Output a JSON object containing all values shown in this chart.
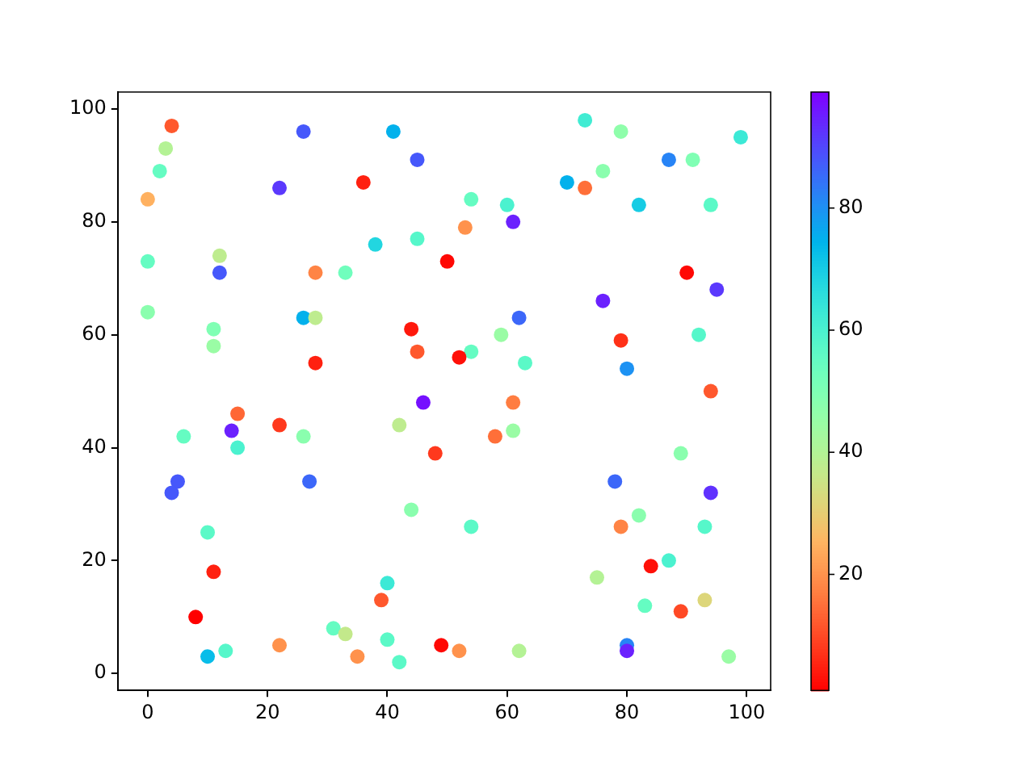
{
  "chart_data": {
    "type": "scatter",
    "marker": "circle",
    "grid": false,
    "legend": false,
    "xlim": [
      -5,
      104
    ],
    "ylim": [
      -3,
      103
    ],
    "xticks": [
      0,
      20,
      40,
      60,
      80,
      100
    ],
    "yticks": [
      0,
      20,
      40,
      60,
      80,
      100
    ],
    "clim": [
      1,
      99
    ],
    "cticks": [
      20,
      40,
      60,
      80
    ],
    "x": [
      4,
      3,
      2,
      0,
      0,
      0,
      12,
      12,
      11,
      11,
      22,
      26,
      28,
      33,
      26,
      28,
      28,
      36,
      38,
      41,
      45,
      45,
      44,
      45,
      46,
      73,
      79,
      99,
      87,
      91,
      76,
      70,
      73,
      54,
      60,
      53,
      61,
      82,
      94,
      50,
      90,
      95,
      76,
      62,
      59,
      92,
      79,
      54,
      52,
      63,
      80,
      94,
      15,
      6,
      14,
      15,
      22,
      26,
      42,
      5,
      4,
      27,
      44,
      10,
      11,
      8,
      40,
      39,
      31,
      33,
      40,
      42,
      13,
      10,
      22,
      35,
      48,
      61,
      58,
      61,
      89,
      78,
      94,
      54,
      79,
      82,
      93,
      87,
      84,
      75,
      83,
      93,
      89,
      49,
      52,
      62,
      80,
      80,
      97
    ],
    "values": [
      97,
      93,
      89,
      84,
      73,
      64,
      74,
      71,
      61,
      58,
      86,
      96,
      71,
      71,
      63,
      63,
      55,
      87,
      76,
      96,
      91,
      77,
      61,
      57,
      48,
      98,
      96,
      95,
      91,
      91,
      89,
      87,
      86,
      84,
      83,
      79,
      80,
      83,
      83,
      73,
      71,
      68,
      66,
      63,
      60,
      60,
      59,
      57,
      56,
      55,
      54,
      50,
      46,
      42,
      43,
      40,
      44,
      42,
      44,
      34,
      32,
      34,
      29,
      25,
      18,
      10,
      16,
      13,
      8,
      7,
      6,
      2,
      4,
      3,
      5,
      3,
      39,
      48,
      42,
      43,
      39,
      34,
      32,
      26,
      26,
      28,
      26,
      20,
      19,
      17,
      12,
      13,
      11,
      5,
      4,
      4,
      5,
      4,
      3
    ],
    "cvalues": [
      12,
      40,
      55,
      25,
      55,
      48,
      38,
      88,
      50,
      45,
      92,
      88,
      18,
      53,
      75,
      38,
      5,
      5,
      68,
      75,
      88,
      58,
      4,
      12,
      97,
      62,
      47,
      63,
      82,
      50,
      48,
      75,
      15,
      55,
      60,
      20,
      95,
      70,
      57,
      2,
      2,
      92,
      95,
      86,
      45,
      58,
      7,
      55,
      3,
      57,
      80,
      12,
      14,
      55,
      95,
      60,
      8,
      48,
      38,
      88,
      88,
      86,
      48,
      57,
      5,
      1,
      63,
      12,
      55,
      37,
      57,
      57,
      58,
      73,
      20,
      20,
      8,
      17,
      15,
      45,
      48,
      86,
      93,
      57,
      18,
      48,
      58,
      60,
      3,
      40,
      55,
      32,
      10,
      2,
      20,
      40,
      82,
      95,
      45
    ]
  }
}
